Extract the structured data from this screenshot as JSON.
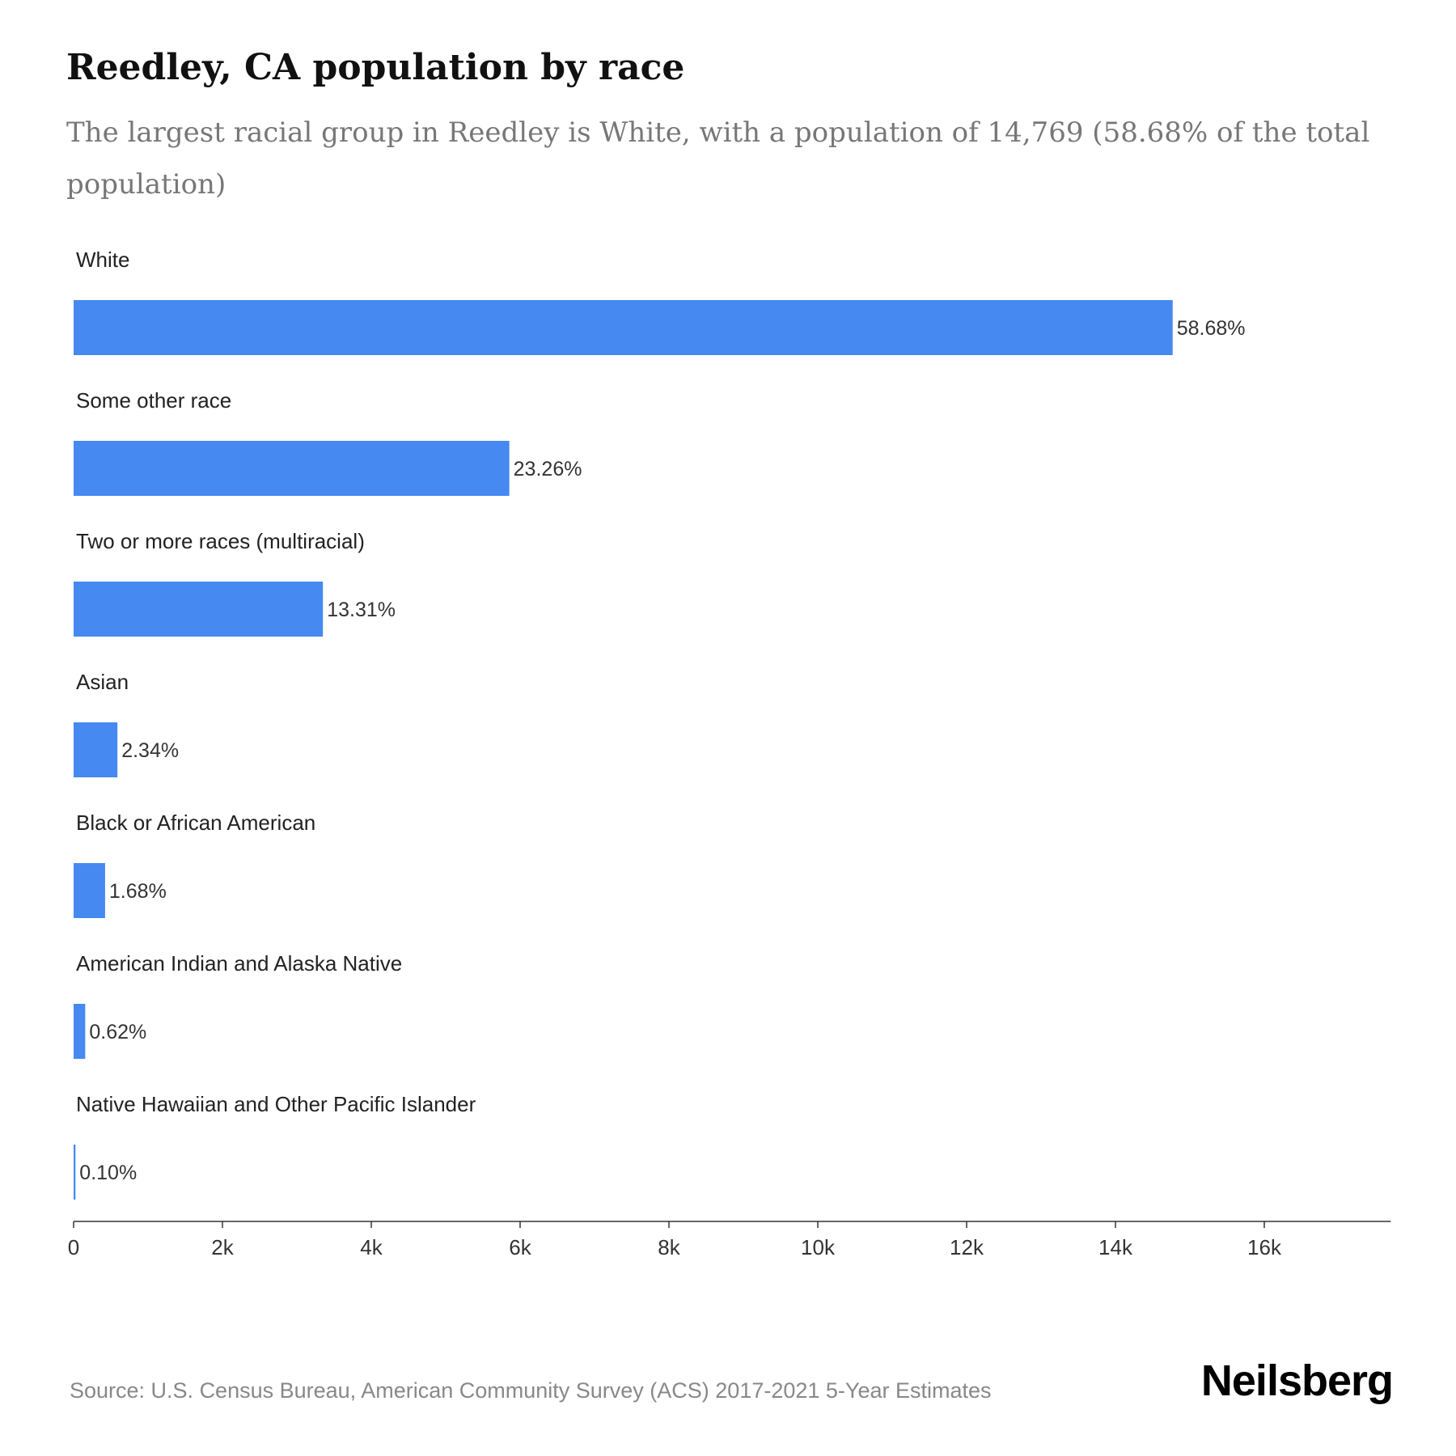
{
  "title": "Reedley, CA population by race",
  "subtitle": "The largest racial group in Reedley is White, with a population of 14,769 (58.68% of the total population)",
  "source": "Source: U.S. Census Bureau, American Community Survey (ACS) 2017-2021 5-Year Estimates",
  "brand": "Neilsberg",
  "colors": {
    "bar": "#4589f1",
    "axis": "#333333",
    "label": "#222222",
    "value_label": "#333333"
  },
  "chart_data": {
    "type": "bar",
    "orientation": "horizontal",
    "categories": [
      "White",
      "Some other race",
      "Two or more races (multiracial)",
      "Asian",
      "Black or African American",
      "American Indian and Alaska Native",
      "Native Hawaiian and Other Pacific Islander"
    ],
    "values": [
      14769,
      5855,
      3350,
      589,
      423,
      156,
      25
    ],
    "data_labels": [
      "58.68%",
      "23.26%",
      "13.31%",
      "2.34%",
      "1.68%",
      "0.62%",
      "0.10%"
    ],
    "xlim": [
      0,
      17700
    ],
    "xticks": [
      0,
      2000,
      4000,
      6000,
      8000,
      10000,
      12000,
      14000,
      16000
    ],
    "xtick_labels": [
      "0",
      "2k",
      "4k",
      "6k",
      "8k",
      "10k",
      "12k",
      "14k",
      "16k"
    ],
    "xlabel": "",
    "ylabel": "",
    "grid": false,
    "legend": "none"
  }
}
